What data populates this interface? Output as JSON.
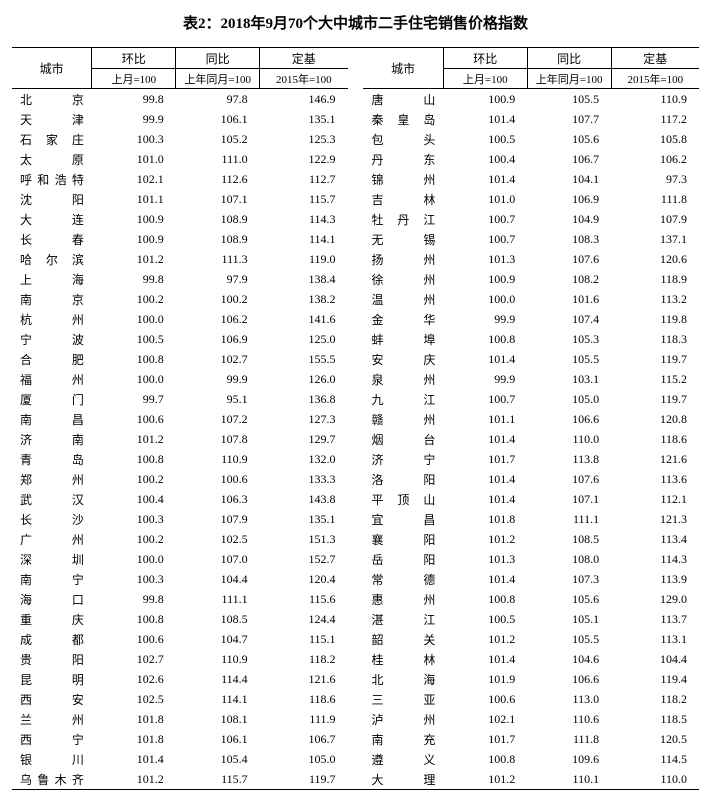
{
  "title": "表2：2018年9月70个大中城市二手住宅销售价格指数",
  "headers": {
    "city": "城市",
    "mom": "环比",
    "yoy": "同比",
    "base": "定基",
    "mom_sub": "上月=100",
    "yoy_sub": "上年同月=100",
    "base_sub": "2015年=100"
  },
  "left": [
    {
      "c": "北　　京",
      "m": "99.8",
      "y": "97.8",
      "b": "146.9"
    },
    {
      "c": "天　　津",
      "m": "99.9",
      "y": "106.1",
      "b": "135.1"
    },
    {
      "c": "石 家 庄",
      "m": "100.3",
      "y": "105.2",
      "b": "125.3"
    },
    {
      "c": "太　　原",
      "m": "101.0",
      "y": "111.0",
      "b": "122.9"
    },
    {
      "c": "呼和浩特",
      "m": "102.1",
      "y": "112.6",
      "b": "112.7"
    },
    {
      "c": "沈　　阳",
      "m": "101.1",
      "y": "107.1",
      "b": "115.7"
    },
    {
      "c": "大　　连",
      "m": "100.9",
      "y": "108.9",
      "b": "114.3"
    },
    {
      "c": "长　　春",
      "m": "100.9",
      "y": "108.9",
      "b": "114.1"
    },
    {
      "c": "哈 尔 滨",
      "m": "101.2",
      "y": "111.3",
      "b": "119.0"
    },
    {
      "c": "上　　海",
      "m": "99.8",
      "y": "97.9",
      "b": "138.4"
    },
    {
      "c": "南　　京",
      "m": "100.2",
      "y": "100.2",
      "b": "138.2"
    },
    {
      "c": "杭　　州",
      "m": "100.0",
      "y": "106.2",
      "b": "141.6"
    },
    {
      "c": "宁　　波",
      "m": "100.5",
      "y": "106.9",
      "b": "125.0"
    },
    {
      "c": "合　　肥",
      "m": "100.8",
      "y": "102.7",
      "b": "155.5"
    },
    {
      "c": "福　　州",
      "m": "100.0",
      "y": "99.9",
      "b": "126.0"
    },
    {
      "c": "厦　　门",
      "m": "99.7",
      "y": "95.1",
      "b": "136.8"
    },
    {
      "c": "南　　昌",
      "m": "100.6",
      "y": "107.2",
      "b": "127.3"
    },
    {
      "c": "济　　南",
      "m": "101.2",
      "y": "107.8",
      "b": "129.7"
    },
    {
      "c": "青　　岛",
      "m": "100.8",
      "y": "110.9",
      "b": "132.0"
    },
    {
      "c": "郑　　州",
      "m": "100.2",
      "y": "100.6",
      "b": "133.3"
    },
    {
      "c": "武　　汉",
      "m": "100.4",
      "y": "106.3",
      "b": "143.8"
    },
    {
      "c": "长　　沙",
      "m": "100.3",
      "y": "107.9",
      "b": "135.1"
    },
    {
      "c": "广　　州",
      "m": "100.2",
      "y": "102.5",
      "b": "151.3"
    },
    {
      "c": "深　　圳",
      "m": "100.0",
      "y": "107.0",
      "b": "152.7"
    },
    {
      "c": "南　　宁",
      "m": "100.3",
      "y": "104.4",
      "b": "120.4"
    },
    {
      "c": "海　　口",
      "m": "99.8",
      "y": "111.1",
      "b": "115.6"
    },
    {
      "c": "重　　庆",
      "m": "100.8",
      "y": "108.5",
      "b": "124.4"
    },
    {
      "c": "成　　都",
      "m": "100.6",
      "y": "104.7",
      "b": "115.1"
    },
    {
      "c": "贵　　阳",
      "m": "102.7",
      "y": "110.9",
      "b": "118.2"
    },
    {
      "c": "昆　　明",
      "m": "102.6",
      "y": "114.4",
      "b": "121.6"
    },
    {
      "c": "西　　安",
      "m": "102.5",
      "y": "114.1",
      "b": "118.6"
    },
    {
      "c": "兰　　州",
      "m": "101.8",
      "y": "108.1",
      "b": "111.9"
    },
    {
      "c": "西　　宁",
      "m": "101.8",
      "y": "106.1",
      "b": "106.7"
    },
    {
      "c": "银　　川",
      "m": "101.4",
      "y": "105.4",
      "b": "105.0"
    },
    {
      "c": "乌鲁木齐",
      "m": "101.2",
      "y": "115.7",
      "b": "119.7"
    }
  ],
  "right": [
    {
      "c": "唐　　山",
      "m": "100.9",
      "y": "105.5",
      "b": "110.9"
    },
    {
      "c": "秦 皇 岛",
      "m": "101.4",
      "y": "107.7",
      "b": "117.2"
    },
    {
      "c": "包　　头",
      "m": "100.5",
      "y": "105.6",
      "b": "105.8"
    },
    {
      "c": "丹　　东",
      "m": "100.4",
      "y": "106.7",
      "b": "106.2"
    },
    {
      "c": "锦　　州",
      "m": "101.4",
      "y": "104.1",
      "b": "97.3"
    },
    {
      "c": "吉　　林",
      "m": "101.0",
      "y": "106.9",
      "b": "111.8"
    },
    {
      "c": "牡 丹 江",
      "m": "100.7",
      "y": "104.9",
      "b": "107.9"
    },
    {
      "c": "无　　锡",
      "m": "100.7",
      "y": "108.3",
      "b": "137.1"
    },
    {
      "c": "扬　　州",
      "m": "101.3",
      "y": "107.6",
      "b": "120.6"
    },
    {
      "c": "徐　　州",
      "m": "100.9",
      "y": "108.2",
      "b": "118.9"
    },
    {
      "c": "温　　州",
      "m": "100.0",
      "y": "101.6",
      "b": "113.2"
    },
    {
      "c": "金　　华",
      "m": "99.9",
      "y": "107.4",
      "b": "119.8"
    },
    {
      "c": "蚌　　埠",
      "m": "100.8",
      "y": "105.3",
      "b": "118.3"
    },
    {
      "c": "安　　庆",
      "m": "101.4",
      "y": "105.5",
      "b": "119.7"
    },
    {
      "c": "泉　　州",
      "m": "99.9",
      "y": "103.1",
      "b": "115.2"
    },
    {
      "c": "九　　江",
      "m": "100.7",
      "y": "105.0",
      "b": "119.7"
    },
    {
      "c": "赣　　州",
      "m": "101.1",
      "y": "106.6",
      "b": "120.8"
    },
    {
      "c": "烟　　台",
      "m": "101.4",
      "y": "110.0",
      "b": "118.6"
    },
    {
      "c": "济　　宁",
      "m": "101.7",
      "y": "113.8",
      "b": "121.6"
    },
    {
      "c": "洛　　阳",
      "m": "101.4",
      "y": "107.6",
      "b": "113.6"
    },
    {
      "c": "平 顶 山",
      "m": "101.4",
      "y": "107.1",
      "b": "112.1"
    },
    {
      "c": "宜　　昌",
      "m": "101.8",
      "y": "111.1",
      "b": "121.3"
    },
    {
      "c": "襄　　阳",
      "m": "101.2",
      "y": "108.5",
      "b": "113.4"
    },
    {
      "c": "岳　　阳",
      "m": "101.3",
      "y": "108.0",
      "b": "114.3"
    },
    {
      "c": "常　　德",
      "m": "101.4",
      "y": "107.3",
      "b": "113.9"
    },
    {
      "c": "惠　　州",
      "m": "100.8",
      "y": "105.6",
      "b": "129.0"
    },
    {
      "c": "湛　　江",
      "m": "100.5",
      "y": "105.1",
      "b": "113.7"
    },
    {
      "c": "韶　　关",
      "m": "101.2",
      "y": "105.5",
      "b": "113.1"
    },
    {
      "c": "桂　　林",
      "m": "101.4",
      "y": "104.6",
      "b": "104.4"
    },
    {
      "c": "北　　海",
      "m": "101.9",
      "y": "106.6",
      "b": "119.4"
    },
    {
      "c": "三　　亚",
      "m": "100.6",
      "y": "113.0",
      "b": "118.2"
    },
    {
      "c": "泸　　州",
      "m": "102.1",
      "y": "110.6",
      "b": "118.5"
    },
    {
      "c": "南　　充",
      "m": "101.7",
      "y": "111.8",
      "b": "120.5"
    },
    {
      "c": "遵　　义",
      "m": "100.8",
      "y": "109.6",
      "b": "114.5"
    },
    {
      "c": "大　　理",
      "m": "101.2",
      "y": "110.1",
      "b": "110.0"
    }
  ]
}
